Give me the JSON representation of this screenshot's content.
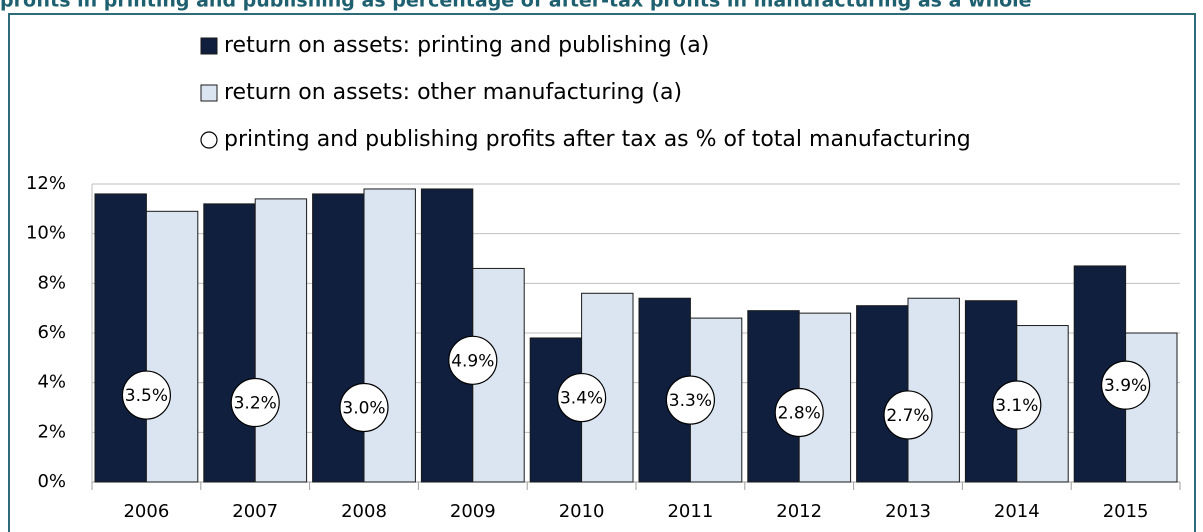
{
  "chart_data": {
    "type": "bar",
    "title": "profits in printing and publishing as percentage of after-tax profits in manufacturing as a whole",
    "categories": [
      "2006",
      "2007",
      "2008",
      "2009",
      "2010",
      "2011",
      "2012",
      "2013",
      "2014",
      "2015"
    ],
    "series": [
      {
        "name": "return on assets: printing and publishing (a)",
        "type": "bar",
        "color": "#0f1f3d",
        "values": [
          11.6,
          11.2,
          11.6,
          11.8,
          5.8,
          7.4,
          6.9,
          7.1,
          7.3,
          8.7
        ]
      },
      {
        "name": "return on assets: other manufacturing (a)",
        "type": "bar",
        "color": "#dbe5f1",
        "values": [
          10.9,
          11.4,
          11.8,
          8.6,
          7.6,
          6.6,
          6.8,
          7.4,
          6.3,
          6.0
        ]
      },
      {
        "name": "printing and publishing profits after tax as % of total manufacturing",
        "type": "marker",
        "color": "#ffffff",
        "values": [
          3.5,
          3.2,
          3.0,
          4.9,
          3.4,
          3.3,
          2.8,
          2.7,
          3.1,
          3.9
        ],
        "value_labels": [
          "3.5%",
          "3.2%",
          "3.0%",
          "4.9%",
          "3.4%",
          "3.3%",
          "2.8%",
          "2.7%",
          "3.1%",
          "3.9%"
        ]
      }
    ],
    "ylim": [
      0,
      12
    ],
    "yticks": [
      {
        "value": 0,
        "label": "0%"
      },
      {
        "value": 2,
        "label": "2%"
      },
      {
        "value": 4,
        "label": "4%"
      },
      {
        "value": 6,
        "label": "6%"
      },
      {
        "value": 8,
        "label": "8%"
      },
      {
        "value": 10,
        "label": "10%"
      },
      {
        "value": 12,
        "label": "12%"
      }
    ],
    "grid": true
  }
}
